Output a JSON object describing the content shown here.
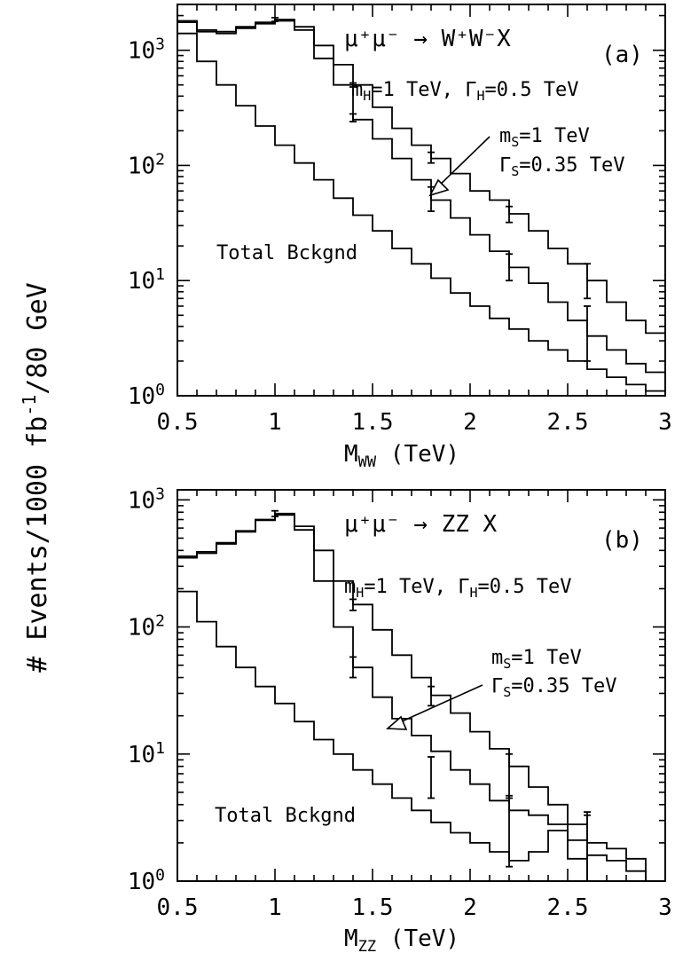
{
  "figure": {
    "ylabel": "# Events/1000 fb",
    "ylabel_sup": "-1",
    "ylabel_tail": "/80 GeV"
  },
  "chart_data": [
    {
      "type": "line",
      "panel_label": "(a)",
      "process": "μ⁺μ⁻ → W⁺W⁻X",
      "xlabel": "M",
      "xlabel_sub": "WW",
      "xlabel_tail": " (TeV)",
      "xlim": [
        0.5,
        3.0
      ],
      "ylim": [
        1,
        2500
      ],
      "y_scale": "log",
      "x_ticks": [
        "0.5",
        "1",
        "1.5",
        "2",
        "2.5",
        "3"
      ],
      "y_ticks": [
        {
          "base": "10",
          "exp": "0"
        },
        {
          "base": "10",
          "exp": "1"
        },
        {
          "base": "10",
          "exp": "2"
        },
        {
          "base": "10",
          "exp": "3"
        }
      ],
      "annotations": {
        "higgs": "m",
        "higgs_sub": "H",
        "higgs_mid": "=1 TeV, Γ",
        "higgs_sub2": "H",
        "higgs_tail": "=0.5 TeV",
        "scalar_mass": "m",
        "scalar_sub": "S",
        "scalar_mass_tail": "=1 TeV",
        "scalar_width": "Γ",
        "scalar_width_sub": "S",
        "scalar_width_tail": "=0.35 TeV",
        "background": "Total Bckgnd"
      },
      "bin_edges": [
        0.5,
        0.6,
        0.7,
        0.8,
        0.9,
        1.0,
        1.1,
        1.2,
        1.3,
        1.4,
        1.5,
        1.6,
        1.7,
        1.8,
        1.9,
        2.0,
        2.1,
        2.2,
        2.3,
        2.4,
        2.5,
        2.6,
        2.7,
        2.8,
        2.9,
        3.0
      ],
      "series": [
        {
          "values": [
            1800,
            1500,
            1450,
            1600,
            1750,
            1850,
            1600,
            1100,
            750,
            500,
            320,
            210,
            150,
            115,
            85,
            60,
            50,
            38,
            27,
            19,
            14,
            10,
            6.5,
            4.5,
            3.5
          ],
          "errors": [
            {
              "x": 1.0,
              "lo": 1780,
              "hi": 1920
            },
            {
              "x": 1.4,
              "lo": 480,
              "hi": 520
            },
            {
              "x": 1.8,
              "lo": 105,
              "hi": 130
            },
            {
              "x": 2.2,
              "lo": 32,
              "hi": 44
            },
            {
              "x": 2.6,
              "lo": 7,
              "hi": 14
            }
          ]
        },
        {
          "values": [
            1750,
            1450,
            1400,
            1550,
            1700,
            1800,
            1500,
            850,
            500,
            250,
            170,
            115,
            75,
            50,
            35,
            25,
            18,
            13,
            9.5,
            6.5,
            4.5,
            3.3,
            2.5,
            1.9,
            1.6
          ],
          "errors": [
            {
              "x": 1.4,
              "lo": 240,
              "hi": 280
            },
            {
              "x": 1.8,
              "lo": 40,
              "hi": 65
            },
            {
              "x": 2.2,
              "lo": 10,
              "hi": 17
            },
            {
              "x": 2.6,
              "lo": 2,
              "hi": 6
            }
          ]
        },
        {
          "values": [
            1400,
            800,
            500,
            330,
            220,
            150,
            105,
            75,
            52,
            37,
            27,
            19,
            14,
            10.5,
            7.8,
            6,
            4.7,
            3.8,
            3.0,
            2.5,
            2.0,
            1.7,
            1.45,
            1.25,
            1.1
          ],
          "errors": []
        }
      ]
    },
    {
      "type": "line",
      "panel_label": "(b)",
      "process": "μ⁺μ⁻ → ZZ X",
      "xlabel": "M",
      "xlabel_sub": "ZZ",
      "xlabel_tail": " (TeV)",
      "xlim": [
        0.5,
        3.0
      ],
      "ylim": [
        1,
        1200
      ],
      "y_scale": "log",
      "x_ticks": [
        "0.5",
        "1",
        "1.5",
        "2",
        "2.5",
        "3"
      ],
      "y_ticks": [
        {
          "base": "10",
          "exp": "0"
        },
        {
          "base": "10",
          "exp": "1"
        },
        {
          "base": "10",
          "exp": "2"
        },
        {
          "base": "10",
          "exp": "3"
        }
      ],
      "annotations": {
        "higgs": "m",
        "higgs_sub": "H",
        "higgs_mid": "=1 TeV, Γ",
        "higgs_sub2": "H",
        "higgs_tail": "=0.5 TeV",
        "scalar_mass": "m",
        "scalar_sub": "S",
        "scalar_mass_tail": "=1 TeV",
        "scalar_width": "Γ",
        "scalar_width_sub": "S",
        "scalar_width_tail": "=0.35 TeV",
        "background": "Total Bckgnd"
      },
      "bin_edges": [
        0.5,
        0.6,
        0.7,
        0.8,
        0.9,
        1.0,
        1.1,
        1.2,
        1.3,
        1.4,
        1.5,
        1.6,
        1.7,
        1.8,
        1.9,
        2.0,
        2.1,
        2.2,
        2.3,
        2.4,
        2.5,
        2.6,
        2.7,
        2.8,
        2.9,
        3.0
      ],
      "series": [
        {
          "values": [
            360,
            390,
            460,
            570,
            700,
            780,
            620,
            400,
            230,
            150,
            95,
            60,
            40,
            29,
            21,
            15,
            11,
            8,
            5.5,
            4,
            2.8,
            2.0,
            1.8,
            1.5,
            1.0
          ],
          "errors": [
            {
              "x": 1.0,
              "lo": 740,
              "hi": 820
            },
            {
              "x": 1.4,
              "lo": 135,
              "hi": 165
            },
            {
              "x": 1.8,
              "lo": 24,
              "hi": 34
            },
            {
              "x": 2.2,
              "lo": 4.5,
              "hi": 10
            },
            {
              "x": 2.6,
              "lo": 1,
              "hi": 3.5
            }
          ]
        },
        {
          "values": [
            350,
            380,
            450,
            560,
            690,
            760,
            580,
            230,
            100,
            48,
            28,
            19,
            14,
            10.5,
            7.5,
            5.8,
            4.3,
            3.6,
            3.3,
            2.8,
            2.1,
            1.6,
            1.45,
            1.2,
            1.0
          ],
          "errors": [
            {
              "x": 1.4,
              "lo": 40,
              "hi": 58
            },
            {
              "x": 1.8,
              "lo": 4.5,
              "hi": 9.5
            },
            {
              "x": 2.2,
              "lo": 1.3,
              "hi": 4.7
            },
            {
              "x": 2.6,
              "lo": 1,
              "hi": 3.3
            }
          ]
        },
        {
          "values": [
            190,
            110,
            70,
            48,
            34,
            25,
            18,
            13,
            10,
            7.5,
            5.8,
            4.5,
            3.6,
            2.9,
            2.4,
            2.0,
            1.7,
            1.45,
            1.7,
            2.5,
            1.5,
            1.0,
            1.0,
            1.0,
            1.0
          ],
          "errors": []
        }
      ]
    }
  ]
}
